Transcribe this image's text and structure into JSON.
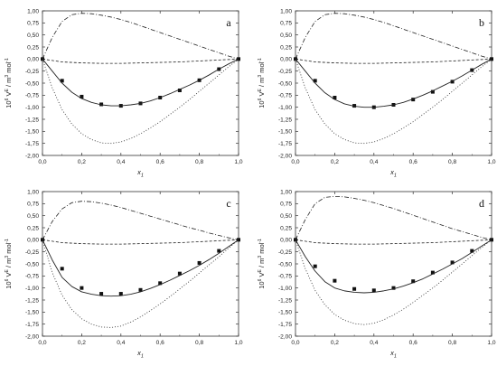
{
  "figure": {
    "xlabel_main": "x",
    "xlabel_sub": "1"
  },
  "chart_data": [
    {
      "type": "line",
      "panel": "a",
      "xlabel": "x1",
      "ylabel": "10^6 V^E / m^3 mol^-1",
      "xlim": [
        0,
        1
      ],
      "ylim": [
        -2,
        1
      ],
      "xticks": [
        "0,0",
        "0,2",
        "0,4",
        "0,6",
        "0,8",
        "1,0"
      ],
      "yticks": [
        "1,00",
        "0,75",
        "0,50",
        "0,25",
        "0,00",
        "-0,25",
        "-0,50",
        "-0,75",
        "-1,00",
        "-1,25",
        "-1,50",
        "-1,75",
        "-2,00"
      ],
      "grid": false,
      "series": [
        {
          "style": "markers",
          "x": [
            0,
            0.1,
            0.2,
            0.3,
            0.4,
            0.5,
            0.6,
            0.7,
            0.8,
            0.9,
            1.0
          ],
          "y": [
            0,
            -0.45,
            -0.78,
            -0.94,
            -0.97,
            -0.92,
            -0.8,
            -0.65,
            -0.44,
            -0.21,
            0
          ]
        },
        {
          "style": "solid",
          "x": [
            0,
            0.05,
            0.1,
            0.15,
            0.2,
            0.25,
            0.3,
            0.35,
            0.4,
            0.45,
            0.5,
            0.55,
            0.6,
            0.65,
            0.7,
            0.75,
            0.8,
            0.85,
            0.9,
            0.95,
            1.0
          ],
          "y": [
            0,
            -0.25,
            -0.5,
            -0.69,
            -0.82,
            -0.9,
            -0.95,
            -0.97,
            -0.97,
            -0.95,
            -0.92,
            -0.87,
            -0.8,
            -0.72,
            -0.63,
            -0.54,
            -0.44,
            -0.33,
            -0.21,
            -0.1,
            0
          ]
        },
        {
          "style": "dotted",
          "x": [
            0,
            0.05,
            0.1,
            0.15,
            0.2,
            0.25,
            0.3,
            0.35,
            0.4,
            0.45,
            0.5,
            0.55,
            0.6,
            0.65,
            0.7,
            0.75,
            0.8,
            0.85,
            0.9,
            0.95,
            1.0
          ],
          "y": [
            0,
            -0.6,
            -1.05,
            -1.35,
            -1.55,
            -1.67,
            -1.74,
            -1.75,
            -1.72,
            -1.65,
            -1.55,
            -1.43,
            -1.3,
            -1.15,
            -1.0,
            -0.84,
            -0.67,
            -0.5,
            -0.33,
            -0.16,
            0
          ]
        },
        {
          "style": "dashdot",
          "x": [
            0,
            0.05,
            0.1,
            0.15,
            0.2,
            0.25,
            0.3,
            0.35,
            0.4,
            0.45,
            0.5,
            0.55,
            0.6,
            0.65,
            0.7,
            0.75,
            0.8,
            0.85,
            0.9,
            0.95,
            1.0
          ],
          "y": [
            0,
            0.45,
            0.78,
            0.92,
            0.95,
            0.94,
            0.91,
            0.87,
            0.82,
            0.76,
            0.69,
            0.62,
            0.55,
            0.48,
            0.41,
            0.34,
            0.27,
            0.2,
            0.13,
            0.06,
            0
          ]
        },
        {
          "style": "dashed",
          "x": [
            0,
            0.1,
            0.2,
            0.3,
            0.4,
            0.5,
            0.6,
            0.7,
            0.8,
            0.9,
            1.0
          ],
          "y": [
            0,
            -0.06,
            -0.08,
            -0.09,
            -0.09,
            -0.08,
            -0.07,
            -0.06,
            -0.04,
            -0.02,
            0
          ]
        }
      ]
    },
    {
      "type": "line",
      "panel": "b",
      "xlabel": "x1",
      "ylabel": "10^6 V^E / m^3 mol^-1",
      "xlim": [
        0,
        1
      ],
      "ylim": [
        -2,
        1
      ],
      "xticks": [
        "0,0",
        "0,2",
        "0,4",
        "0,6",
        "0,8",
        "1,0"
      ],
      "yticks": [
        "1,00",
        "0,75",
        "0,50",
        "0,25",
        "0,00",
        "-0,25",
        "-0,50",
        "-0,75",
        "-1,00",
        "-1,25",
        "-1,50",
        "-1,75",
        "-2,00"
      ],
      "grid": false,
      "series": [
        {
          "style": "markers",
          "x": [
            0,
            0.1,
            0.2,
            0.3,
            0.4,
            0.5,
            0.6,
            0.7,
            0.8,
            0.9,
            1.0
          ],
          "y": [
            0,
            -0.45,
            -0.8,
            -0.97,
            -1.0,
            -0.95,
            -0.84,
            -0.68,
            -0.47,
            -0.23,
            0
          ]
        },
        {
          "style": "solid",
          "x": [
            0,
            0.05,
            0.1,
            0.15,
            0.2,
            0.25,
            0.3,
            0.35,
            0.4,
            0.45,
            0.5,
            0.55,
            0.6,
            0.65,
            0.7,
            0.75,
            0.8,
            0.85,
            0.9,
            0.95,
            1.0
          ],
          "y": [
            0,
            -0.25,
            -0.5,
            -0.7,
            -0.84,
            -0.93,
            -0.98,
            -1.0,
            -1.0,
            -0.98,
            -0.95,
            -0.9,
            -0.83,
            -0.75,
            -0.66,
            -0.56,
            -0.46,
            -0.35,
            -0.23,
            -0.11,
            0
          ]
        },
        {
          "style": "dotted",
          "x": [
            0,
            0.05,
            0.1,
            0.15,
            0.2,
            0.25,
            0.3,
            0.35,
            0.4,
            0.45,
            0.5,
            0.55,
            0.6,
            0.65,
            0.7,
            0.75,
            0.8,
            0.85,
            0.9,
            0.95,
            1.0
          ],
          "y": [
            0,
            -0.6,
            -1.05,
            -1.35,
            -1.55,
            -1.67,
            -1.74,
            -1.75,
            -1.72,
            -1.65,
            -1.55,
            -1.43,
            -1.3,
            -1.15,
            -1.0,
            -0.84,
            -0.67,
            -0.5,
            -0.33,
            -0.16,
            0
          ]
        },
        {
          "style": "dashdot",
          "x": [
            0,
            0.05,
            0.1,
            0.15,
            0.2,
            0.25,
            0.3,
            0.35,
            0.4,
            0.45,
            0.5,
            0.55,
            0.6,
            0.65,
            0.7,
            0.75,
            0.8,
            0.85,
            0.9,
            0.95,
            1.0
          ],
          "y": [
            0,
            0.45,
            0.78,
            0.92,
            0.95,
            0.94,
            0.91,
            0.87,
            0.82,
            0.76,
            0.69,
            0.62,
            0.55,
            0.48,
            0.41,
            0.34,
            0.27,
            0.2,
            0.13,
            0.06,
            0
          ]
        },
        {
          "style": "dashed",
          "x": [
            0,
            0.1,
            0.2,
            0.3,
            0.4,
            0.5,
            0.6,
            0.7,
            0.8,
            0.9,
            1.0
          ],
          "y": [
            0,
            -0.06,
            -0.08,
            -0.09,
            -0.09,
            -0.08,
            -0.07,
            -0.06,
            -0.04,
            -0.02,
            0
          ]
        }
      ]
    },
    {
      "type": "line",
      "panel": "c",
      "xlabel": "x1",
      "ylabel": "10^6 V^E / m^3 mol^-1",
      "xlim": [
        0,
        1
      ],
      "ylim": [
        -2,
        1
      ],
      "xticks": [
        "0,0",
        "0,2",
        "0,4",
        "0,6",
        "0,8",
        "1,0"
      ],
      "yticks": [
        "1,00",
        "0,75",
        "0,50",
        "0,25",
        "0,00",
        "-0,25",
        "-0,50",
        "-0,75",
        "-1,00",
        "-1,25",
        "-1,50",
        "-1,75",
        "-2,00"
      ],
      "grid": false,
      "series": [
        {
          "style": "markers",
          "x": [
            0,
            0.1,
            0.2,
            0.3,
            0.4,
            0.5,
            0.6,
            0.7,
            0.8,
            0.9,
            1.0
          ],
          "y": [
            0,
            -0.6,
            -1.0,
            -1.12,
            -1.12,
            -1.04,
            -0.9,
            -0.7,
            -0.48,
            -0.23,
            0
          ]
        },
        {
          "style": "solid",
          "x": [
            0,
            0.05,
            0.1,
            0.15,
            0.2,
            0.25,
            0.3,
            0.35,
            0.4,
            0.45,
            0.5,
            0.55,
            0.6,
            0.65,
            0.7,
            0.75,
            0.8,
            0.85,
            0.9,
            0.95,
            1.0
          ],
          "y": [
            0,
            -0.42,
            -0.78,
            -0.97,
            -1.08,
            -1.13,
            -1.16,
            -1.17,
            -1.16,
            -1.13,
            -1.08,
            -1.01,
            -0.93,
            -0.84,
            -0.74,
            -0.64,
            -0.53,
            -0.41,
            -0.28,
            -0.14,
            0
          ]
        },
        {
          "style": "dotted",
          "x": [
            0,
            0.05,
            0.1,
            0.15,
            0.2,
            0.25,
            0.3,
            0.35,
            0.4,
            0.45,
            0.5,
            0.55,
            0.6,
            0.65,
            0.7,
            0.75,
            0.8,
            0.85,
            0.9,
            0.95,
            1.0
          ],
          "y": [
            0,
            -0.68,
            -1.15,
            -1.45,
            -1.64,
            -1.75,
            -1.81,
            -1.82,
            -1.79,
            -1.71,
            -1.6,
            -1.47,
            -1.33,
            -1.18,
            -1.02,
            -0.86,
            -0.69,
            -0.52,
            -0.35,
            -0.17,
            0
          ]
        },
        {
          "style": "dashdot",
          "x": [
            0,
            0.05,
            0.1,
            0.15,
            0.2,
            0.25,
            0.3,
            0.35,
            0.4,
            0.45,
            0.5,
            0.55,
            0.6,
            0.65,
            0.7,
            0.75,
            0.8,
            0.85,
            0.9,
            0.95,
            1.0
          ],
          "y": [
            0,
            0.38,
            0.64,
            0.77,
            0.8,
            0.79,
            0.76,
            0.72,
            0.67,
            0.61,
            0.55,
            0.49,
            0.43,
            0.37,
            0.31,
            0.25,
            0.2,
            0.14,
            0.09,
            0.04,
            0
          ]
        },
        {
          "style": "dashed",
          "x": [
            0,
            0.1,
            0.2,
            0.3,
            0.4,
            0.5,
            0.6,
            0.7,
            0.8,
            0.9,
            1.0
          ],
          "y": [
            0,
            -0.06,
            -0.08,
            -0.09,
            -0.09,
            -0.08,
            -0.07,
            -0.06,
            -0.04,
            -0.02,
            0
          ]
        }
      ]
    },
    {
      "type": "line",
      "panel": "d",
      "xlabel": "x1",
      "ylabel": "10^6 V^E / m^3 mol^-1",
      "xlim": [
        0,
        1
      ],
      "ylim": [
        -2,
        1
      ],
      "xticks": [
        "0,0",
        "0,2",
        "0,4",
        "0,6",
        "0,8",
        "1,0"
      ],
      "yticks": [
        "1,00",
        "0,75",
        "0,50",
        "0,25",
        "0,00",
        "-0,25",
        "-0,50",
        "-0,75",
        "-1,00",
        "-1,25",
        "-1,50",
        "-1,75",
        "-2,00"
      ],
      "grid": false,
      "series": [
        {
          "style": "markers",
          "x": [
            0,
            0.1,
            0.2,
            0.3,
            0.4,
            0.5,
            0.6,
            0.7,
            0.8,
            0.9,
            1.0
          ],
          "y": [
            0,
            -0.55,
            -0.85,
            -1.02,
            -1.05,
            -1.0,
            -0.86,
            -0.68,
            -0.47,
            -0.23,
            0
          ]
        },
        {
          "style": "solid",
          "x": [
            0,
            0.05,
            0.1,
            0.15,
            0.2,
            0.25,
            0.3,
            0.35,
            0.4,
            0.45,
            0.5,
            0.55,
            0.6,
            0.65,
            0.7,
            0.75,
            0.8,
            0.85,
            0.9,
            0.95,
            1.0
          ],
          "y": [
            0,
            -0.35,
            -0.65,
            -0.87,
            -1.0,
            -1.06,
            -1.09,
            -1.1,
            -1.09,
            -1.06,
            -1.02,
            -0.96,
            -0.89,
            -0.81,
            -0.71,
            -0.61,
            -0.5,
            -0.39,
            -0.26,
            -0.13,
            0
          ]
        },
        {
          "style": "dotted",
          "x": [
            0,
            0.05,
            0.1,
            0.15,
            0.2,
            0.25,
            0.3,
            0.35,
            0.4,
            0.45,
            0.5,
            0.55,
            0.6,
            0.65,
            0.7,
            0.75,
            0.8,
            0.85,
            0.9,
            0.95,
            1.0
          ],
          "y": [
            0,
            -0.6,
            -1.05,
            -1.35,
            -1.55,
            -1.67,
            -1.74,
            -1.76,
            -1.73,
            -1.66,
            -1.56,
            -1.44,
            -1.3,
            -1.15,
            -1.0,
            -0.84,
            -0.67,
            -0.5,
            -0.33,
            -0.16,
            0
          ]
        },
        {
          "style": "dashdot",
          "x": [
            0,
            0.05,
            0.1,
            0.15,
            0.2,
            0.25,
            0.3,
            0.35,
            0.4,
            0.45,
            0.5,
            0.55,
            0.6,
            0.65,
            0.7,
            0.75,
            0.8,
            0.85,
            0.9,
            0.95,
            1.0
          ],
          "y": [
            0,
            0.42,
            0.75,
            0.88,
            0.9,
            0.89,
            0.86,
            0.82,
            0.77,
            0.71,
            0.65,
            0.58,
            0.51,
            0.44,
            0.37,
            0.3,
            0.23,
            0.17,
            0.11,
            0.05,
            0
          ]
        },
        {
          "style": "dashed",
          "x": [
            0,
            0.1,
            0.2,
            0.3,
            0.4,
            0.5,
            0.6,
            0.7,
            0.8,
            0.9,
            1.0
          ],
          "y": [
            0,
            -0.06,
            -0.08,
            -0.09,
            -0.09,
            -0.08,
            -0.07,
            -0.06,
            -0.04,
            -0.02,
            0
          ]
        }
      ]
    }
  ]
}
